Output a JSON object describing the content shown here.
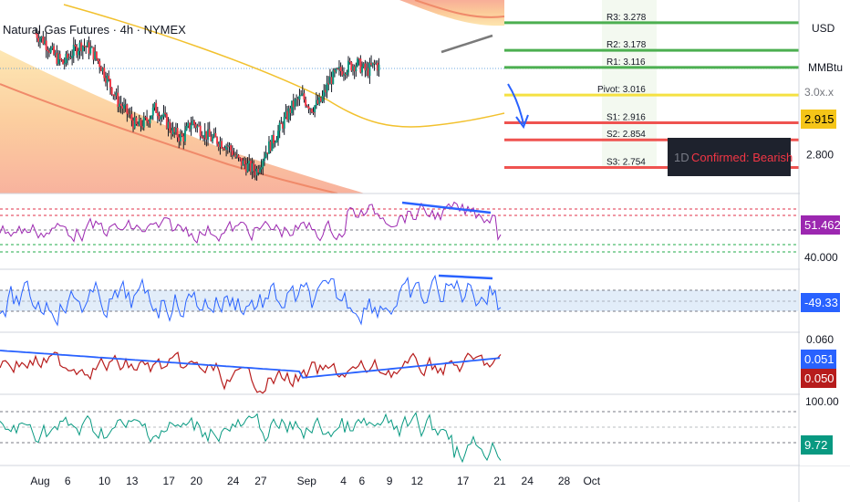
{
  "header": {
    "title": "Natural Gas Futures · 4h · NYMEX"
  },
  "axis_labels": {
    "currency": "USD",
    "unit": "MMBtu",
    "partial_price": "3.0x.x"
  },
  "pivots": [
    {
      "label": "R3: 3.278",
      "value": 3.278,
      "color": "#4caf50"
    },
    {
      "label": "R2: 3.178",
      "value": 3.178,
      "color": "#4caf50"
    },
    {
      "label": "R1: 3.116",
      "value": 3.116,
      "color": "#4caf50"
    },
    {
      "label": "Pivot: 3.016",
      "value": 3.016,
      "color": "#f5e142"
    },
    {
      "label": "S1: 2.916",
      "value": 2.916,
      "color": "#ef5350"
    },
    {
      "label": "S2: 2.854",
      "value": 2.854,
      "color": "#ef5350"
    },
    {
      "label": "S3: 2.754",
      "value": 2.754,
      "color": "#ef5350"
    }
  ],
  "price_ticks": [
    {
      "label": "2.800",
      "value": 2.8
    }
  ],
  "badges": {
    "last_price": {
      "text": "2.915",
      "bg": "#f5c518",
      "fg": "#000000"
    },
    "rsi": {
      "text": "51.462",
      "bg": "#9c27b0",
      "fg": "#ffffff"
    },
    "cci": {
      "text": "-49.33",
      "bg": "#2962ff",
      "fg": "#ffffff"
    },
    "ma_blue": {
      "text": "0.051",
      "bg": "#2962ff",
      "fg": "#ffffff"
    },
    "ma_red": {
      "text": "0.050",
      "bg": "#b71c1c",
      "fg": "#ffffff"
    },
    "stoch": {
      "text": "9.72",
      "bg": "#089981",
      "fg": "#ffffff"
    }
  },
  "pane_ticks": {
    "rsi_low": "40.000",
    "ma_top": "0.060",
    "stoch_top": "100.00"
  },
  "signal": {
    "tf": "1D",
    "text": "Confirmed: Bearish"
  },
  "x_axis_labels": [
    {
      "label": "Aug",
      "x": 0
    },
    {
      "label": "6",
      "x": 3
    },
    {
      "label": "10",
      "x": 7
    },
    {
      "label": "13",
      "x": 10
    },
    {
      "label": "17",
      "x": 14
    },
    {
      "label": "20",
      "x": 17
    },
    {
      "label": "24",
      "x": 21
    },
    {
      "label": "27",
      "x": 24
    },
    {
      "label": "Sep",
      "x": 29
    },
    {
      "label": "4",
      "x": 33
    },
    {
      "label": "6",
      "x": 35
    },
    {
      "label": "9",
      "x": 38
    },
    {
      "label": "12",
      "x": 41
    },
    {
      "label": "17",
      "x": 46
    },
    {
      "label": "21",
      "x": 50
    },
    {
      "label": "24",
      "x": 53
    },
    {
      "label": "28",
      "x": 57
    },
    {
      "label": "Oct",
      "x": 60
    }
  ],
  "chart_data": {
    "type": "line",
    "title": "Natural Gas Futures · 4h · NYMEX",
    "x_unit": "days since Aug 1",
    "price_range": [
      2.66,
      3.36
    ],
    "price_series_approx": [
      [
        -0.5,
        3.24
      ],
      [
        0.5,
        3.21
      ],
      [
        1.5,
        3.16
      ],
      [
        2.5,
        3.13
      ],
      [
        3.5,
        3.17
      ],
      [
        4.5,
        3.2
      ],
      [
        5.5,
        3.18
      ],
      [
        6.5,
        3.13
      ],
      [
        7.5,
        3.06
      ],
      [
        8.5,
        2.99
      ],
      [
        9.5,
        2.95
      ],
      [
        10.5,
        2.9
      ],
      [
        11.5,
        2.92
      ],
      [
        12.5,
        2.97
      ],
      [
        13.5,
        2.93
      ],
      [
        14.5,
        2.88
      ],
      [
        15.5,
        2.86
      ],
      [
        16.5,
        2.92
      ],
      [
        17.5,
        2.89
      ],
      [
        18.5,
        2.86
      ],
      [
        19.5,
        2.85
      ],
      [
        20.5,
        2.83
      ],
      [
        21.5,
        2.78
      ],
      [
        22.5,
        2.76
      ],
      [
        23.5,
        2.74
      ],
      [
        24.5,
        2.81
      ],
      [
        25.5,
        2.86
      ],
      [
        26.5,
        2.92
      ],
      [
        27.5,
        2.98
      ],
      [
        28.5,
        3.01
      ],
      [
        29.5,
        2.97
      ],
      [
        30.5,
        2.99
      ],
      [
        31.5,
        3.07
      ],
      [
        32.5,
        3.1
      ],
      [
        33.5,
        3.12
      ],
      [
        34.5,
        3.13
      ],
      [
        35.5,
        3.1
      ],
      [
        36.5,
        3.13
      ],
      [
        37.0,
        3.11
      ]
    ],
    "channel_center_approx": [
      [
        -0.5,
        3.36
      ],
      [
        6,
        3.26
      ],
      [
        12,
        3.14
      ],
      [
        18,
        3.04
      ],
      [
        23,
        2.97
      ],
      [
        27,
        2.93
      ],
      [
        31,
        2.93
      ],
      [
        34,
        2.96
      ],
      [
        37,
        3.0
      ]
    ],
    "panes": [
      "RSI",
      "CCI",
      "Moving averages",
      "Stochastic"
    ]
  }
}
